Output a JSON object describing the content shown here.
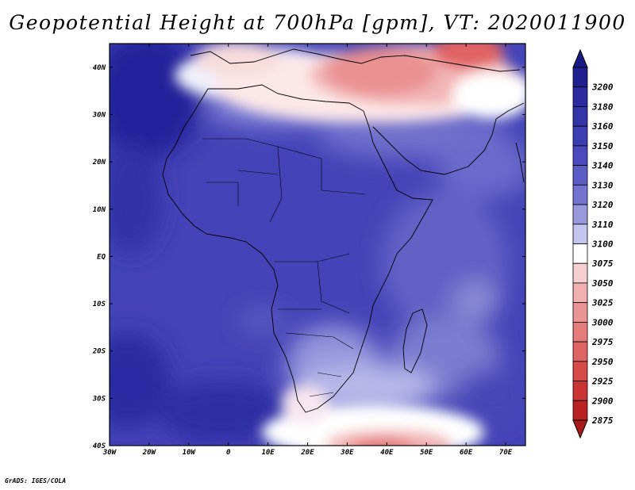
{
  "title": "Geopotential Height at 700hPa [gpm], VT: 2020011900",
  "credit": "GrADS: IGES/COLA",
  "map": {
    "lon_range": [
      -30,
      75
    ],
    "lat_range": [
      -40,
      45
    ],
    "lon_ticks": [
      {
        "value": -30,
        "label": "30W"
      },
      {
        "value": -20,
        "label": "20W"
      },
      {
        "value": -10,
        "label": "10W"
      },
      {
        "value": 0,
        "label": "0"
      },
      {
        "value": 10,
        "label": "10E"
      },
      {
        "value": 20,
        "label": "20E"
      },
      {
        "value": 30,
        "label": "30E"
      },
      {
        "value": 40,
        "label": "40E"
      },
      {
        "value": 50,
        "label": "50E"
      },
      {
        "value": 60,
        "label": "60E"
      },
      {
        "value": 70,
        "label": "70E"
      }
    ],
    "lat_ticks": [
      {
        "value": 40,
        "label": "40N"
      },
      {
        "value": 30,
        "label": "30N"
      },
      {
        "value": 20,
        "label": "20N"
      },
      {
        "value": 10,
        "label": "10N"
      },
      {
        "value": 0,
        "label": "EQ"
      },
      {
        "value": -10,
        "label": "10S"
      },
      {
        "value": -20,
        "label": "20S"
      },
      {
        "value": -30,
        "label": "30S"
      },
      {
        "value": -40,
        "label": "40S"
      }
    ],
    "colorbar": [
      {
        "value": "3200",
        "color": "#1f1f8f"
      },
      {
        "value": "3180",
        "color": "#2b2b9f"
      },
      {
        "value": "3160",
        "color": "#3434a9"
      },
      {
        "value": "3150",
        "color": "#3e3eb3"
      },
      {
        "value": "3140",
        "color": "#4a4abc"
      },
      {
        "value": "3130",
        "color": "#5c5cc6"
      },
      {
        "value": "3120",
        "color": "#7474d0"
      },
      {
        "value": "3110",
        "color": "#9898dd"
      },
      {
        "value": "3100",
        "color": "#c4c4ee"
      },
      {
        "value": "3075",
        "color": "#ffffff"
      },
      {
        "value": "3050",
        "color": "#f6d0d0"
      },
      {
        "value": "3025",
        "color": "#f0b0b0"
      },
      {
        "value": "3000",
        "color": "#ea9494"
      },
      {
        "value": "2975",
        "color": "#e47c7c"
      },
      {
        "value": "2950",
        "color": "#de6464"
      },
      {
        "value": "2925",
        "color": "#d64a4a"
      },
      {
        "value": "2900",
        "color": "#c93434"
      },
      {
        "value": "2875",
        "color": "#b82222"
      }
    ]
  }
}
